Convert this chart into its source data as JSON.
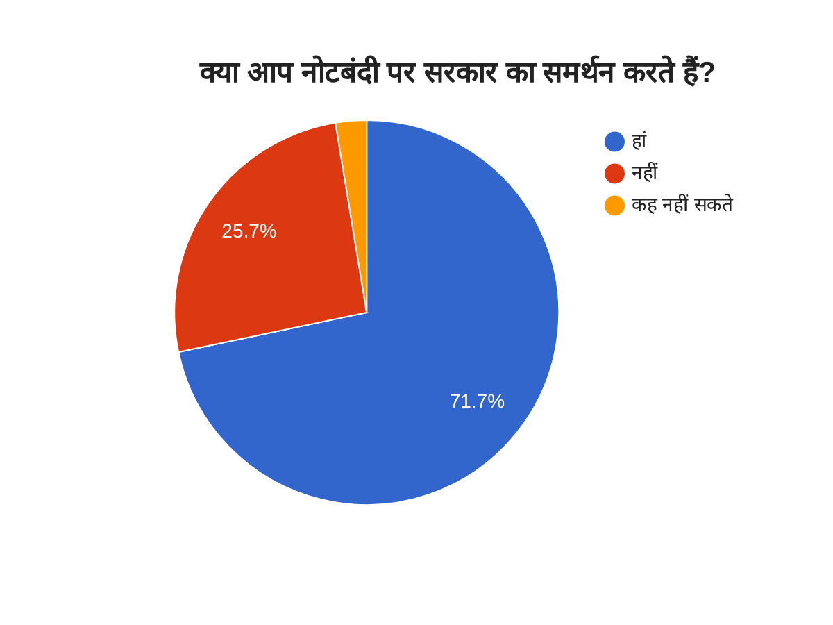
{
  "chart_data": {
    "type": "pie",
    "title": "क्या आप नोटबंदी पर सरकार का समर्थन करते हैं?",
    "categories": [
      "हां",
      "नहीं",
      "कह नहीं सकते"
    ],
    "values": [
      71.7,
      25.7,
      2.6
    ],
    "colors": [
      "#3366cc",
      "#dc3912",
      "#ff9900"
    ],
    "value_labels": [
      "71.7%",
      "25.7%",
      null
    ],
    "legend": "top right"
  }
}
